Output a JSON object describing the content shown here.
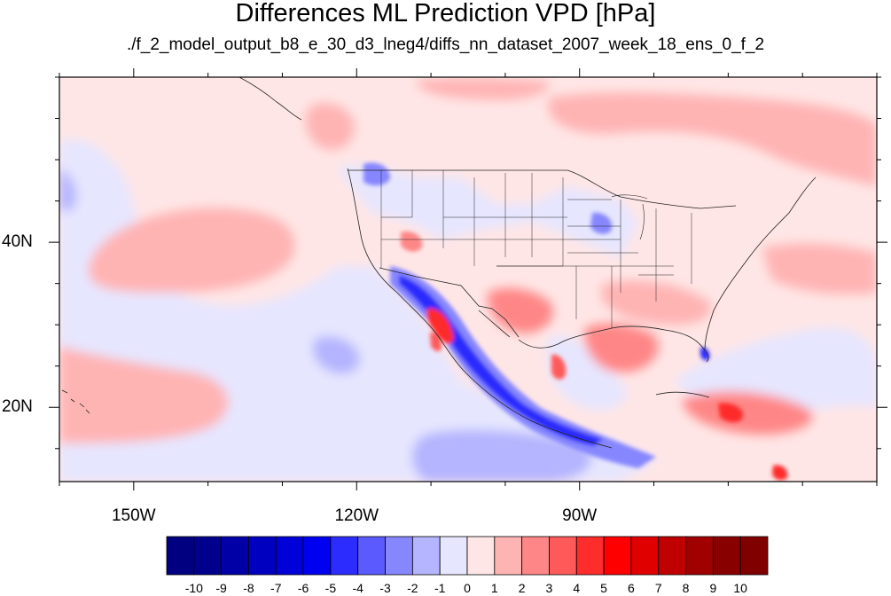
{
  "title": "Differences ML Prediction VPD [hPa]",
  "subtitle": "./f_2_model_output_b8_e_30_d3_lneg4/diffs_nn_dataset_2007_week_18_ens_0_f_2",
  "map": {
    "lon_range": [
      -160,
      -50
    ],
    "lat_range": [
      11,
      60
    ],
    "lon_ticks": [
      {
        "lon": -150,
        "label": "150W"
      },
      {
        "lon": -120,
        "label": "120W"
      },
      {
        "lon": -90,
        "label": "90W"
      }
    ],
    "lat_ticks": [
      {
        "lat": 40,
        "label": "40N"
      },
      {
        "lat": 20,
        "label": "20N"
      }
    ]
  },
  "colorbar": {
    "labels": [
      "-10",
      "-9",
      "-8",
      "-7",
      "-6",
      "-5",
      "-4",
      "-3",
      "-2",
      "-1",
      "0",
      "1",
      "2",
      "3",
      "4",
      "5",
      "6",
      "7",
      "8",
      "9",
      "10"
    ],
    "colors": [
      "#000080",
      "#00008c",
      "#0000a6",
      "#0000c0",
      "#0000d8",
      "#0000f0",
      "#2c2cff",
      "#5a5aff",
      "#8686ff",
      "#b4b4ff",
      "#e6e6ff",
      "#ffe6e6",
      "#ffb4b4",
      "#ff8686",
      "#ff5a5a",
      "#ff2c2c",
      "#ff0000",
      "#e00000",
      "#c00000",
      "#a00000",
      "#880000",
      "#800000"
    ]
  }
}
